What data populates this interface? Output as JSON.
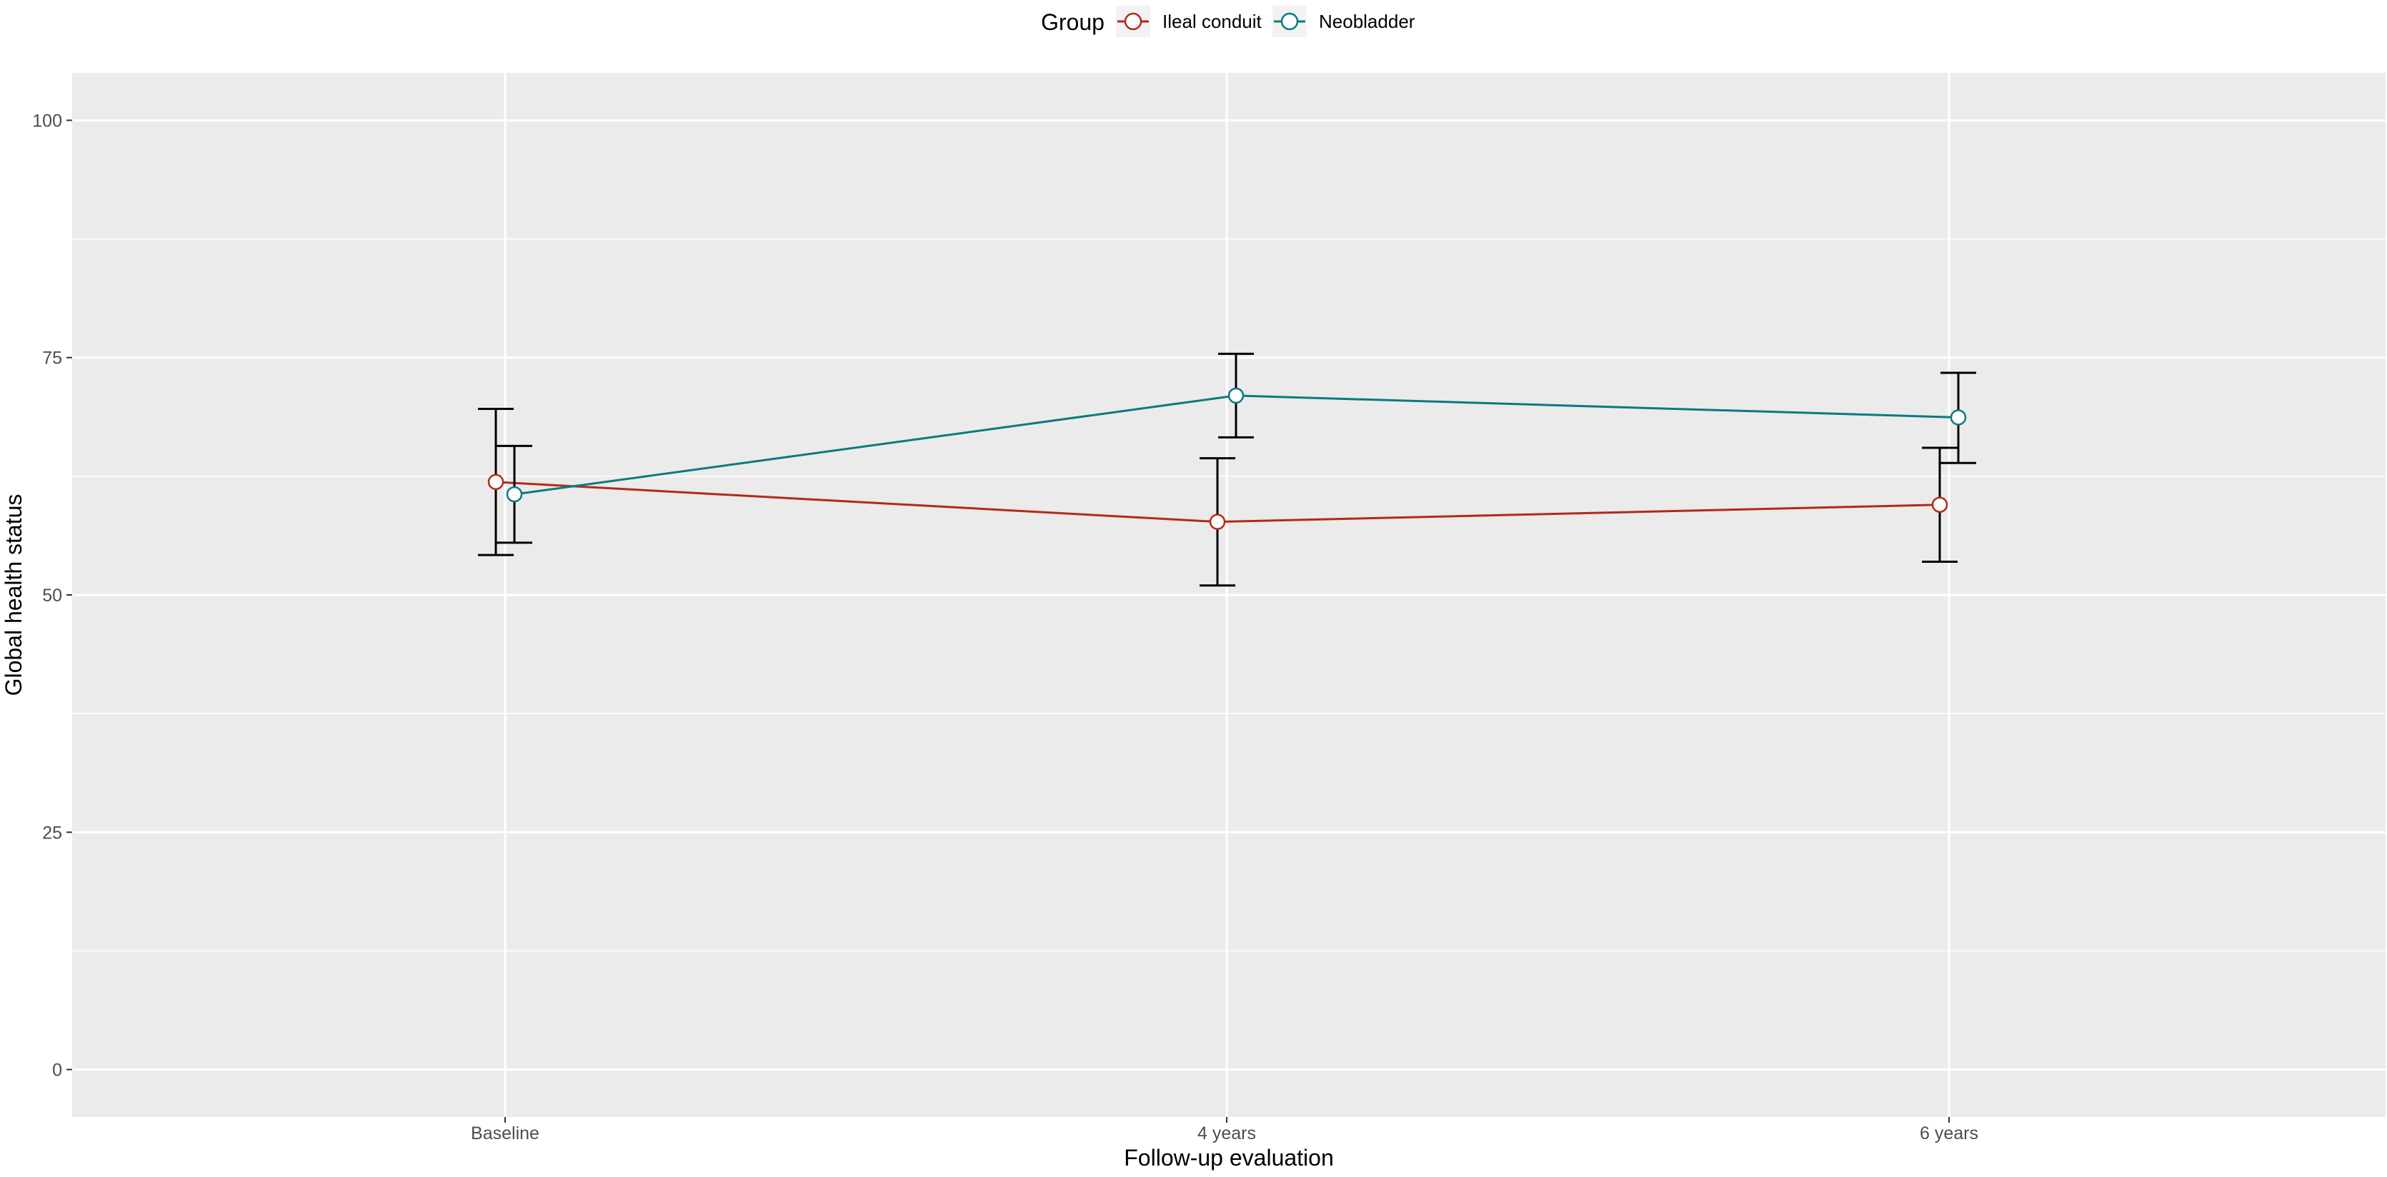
{
  "chart_data": {
    "type": "line",
    "xlabel": "Follow-up evaluation",
    "ylabel": "Global health status",
    "categories": [
      "Baseline",
      "4 years",
      "6 years"
    ],
    "ylim": [
      -5,
      105
    ],
    "yticks": [
      0,
      25,
      50,
      75,
      100
    ],
    "grid": true,
    "legend": {
      "title": "Group",
      "position": "top"
    },
    "series": [
      {
        "name": "Ileal conduit",
        "color": "#b22a1a",
        "values": [
          61.9,
          57.7,
          59.5
        ],
        "lower": [
          54.2,
          51.0,
          53.5
        ],
        "upper": [
          69.6,
          64.4,
          65.5
        ]
      },
      {
        "name": "Neobladder",
        "color": "#0b7a80",
        "values": [
          60.6,
          71.0,
          68.7
        ],
        "lower": [
          55.5,
          66.6,
          63.9
        ],
        "upper": [
          65.7,
          75.4,
          73.4
        ]
      }
    ]
  }
}
